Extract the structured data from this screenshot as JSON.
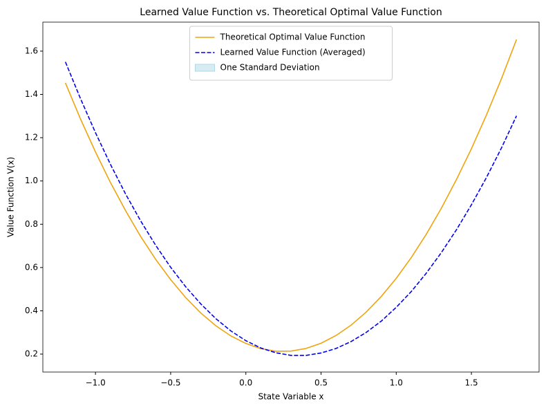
{
  "chart_data": {
    "type": "line",
    "title": "Learned Value Function vs. Theoretical Optimal Value Function",
    "xlabel": "State Variable x",
    "ylabel": "Value Function V(x)",
    "x": [
      -1.2,
      -1.1,
      -1.0,
      -0.9,
      -0.8,
      -0.7,
      -0.6,
      -0.5,
      -0.4,
      -0.3,
      -0.2,
      -0.1,
      0.0,
      0.1,
      0.2,
      0.3,
      0.4,
      0.5,
      0.6,
      0.7,
      0.8,
      0.9,
      1.0,
      1.1,
      1.2,
      1.3,
      1.4,
      1.5,
      1.6,
      1.7,
      1.8
    ],
    "series": [
      {
        "name": "Theoretical Optimal Value Function",
        "color": "#f0a30a",
        "dash": false,
        "values": [
          1.453,
          1.287,
          1.134,
          0.992,
          0.863,
          0.744,
          0.638,
          0.544,
          0.461,
          0.39,
          0.331,
          0.284,
          0.249,
          0.225,
          0.213,
          0.214,
          0.226,
          0.25,
          0.286,
          0.334,
          0.394,
          0.466,
          0.55,
          0.646,
          0.754,
          0.874,
          1.006,
          1.149,
          1.305,
          1.473,
          1.654
        ]
      },
      {
        "name": "Learned Value Function (Averaged)",
        "color": "#0000ee",
        "dash": true,
        "values": [
          1.55,
          1.381,
          1.223,
          1.076,
          0.94,
          0.816,
          0.703,
          0.601,
          0.511,
          0.432,
          0.364,
          0.307,
          0.262,
          0.228,
          0.206,
          0.194,
          0.194,
          0.205,
          0.226,
          0.258,
          0.3,
          0.352,
          0.416,
          0.489,
          0.574,
          0.669,
          0.774,
          0.89,
          1.016,
          1.153,
          1.301
        ]
      }
    ],
    "bands": [
      {
        "name": "One Standard Deviation",
        "color": "#add8e6"
      }
    ],
    "xlim": [
      -1.35,
      1.95
    ],
    "ylim": [
      0.117,
      1.734
    ],
    "xticks": [
      {
        "value": -1.0,
        "label": "−1.0"
      },
      {
        "value": -0.5,
        "label": "−0.5"
      },
      {
        "value": 0.0,
        "label": "0.0"
      },
      0.5,
      {
        "value": 1.0,
        "label": "1.0"
      },
      1.5
    ],
    "yticks": [
      0.2,
      0.4,
      0.6,
      0.8,
      {
        "value": 1.0,
        "label": "1.0"
      },
      1.2,
      1.4,
      1.6
    ],
    "legend": "upper center"
  }
}
